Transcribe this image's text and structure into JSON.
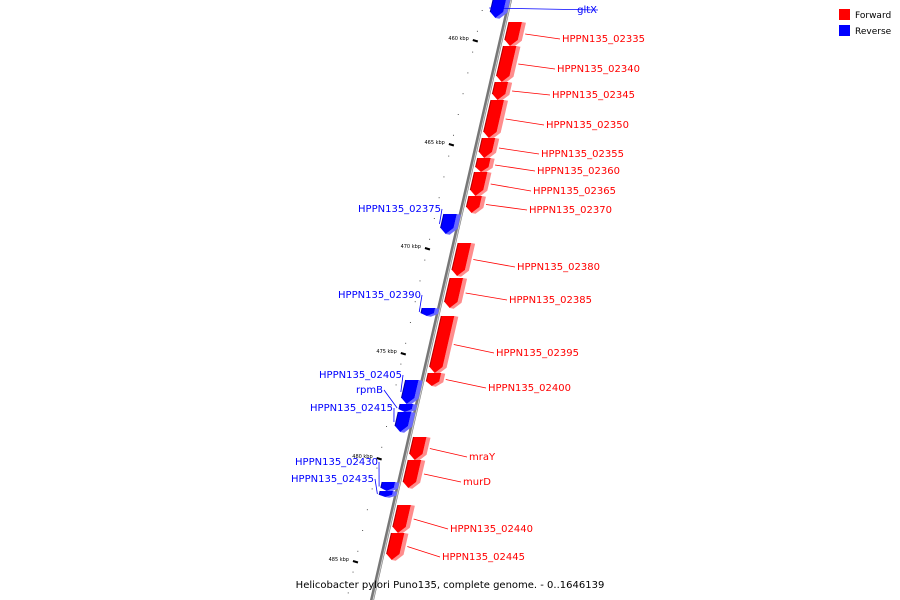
{
  "caption": "Helicobacter pylori Puno135, complete genome. - 0..1646139",
  "colors": {
    "forward": "#ff0000",
    "forward_light": "#ff8c8c",
    "forward_dark": "#b00000",
    "reverse": "#0000ff",
    "reverse_light": "#6a6aff",
    "reverse_dark": "#0000a8"
  },
  "legend": [
    {
      "label": "Forward",
      "color": "#ff0000"
    },
    {
      "label": "Reverse",
      "color": "#0000ff"
    }
  ],
  "ticks": [
    "460 kbp",
    "465 kbp",
    "470 kbp",
    "475 kbp",
    "480 kbp",
    "485 kbp"
  ],
  "genes": [
    {
      "name": "gltX",
      "strand": "reverse"
    },
    {
      "name": "HPPN135_02335",
      "strand": "forward"
    },
    {
      "name": "HPPN135_02340",
      "strand": "forward"
    },
    {
      "name": "HPPN135_02345",
      "strand": "forward"
    },
    {
      "name": "HPPN135_02350",
      "strand": "forward"
    },
    {
      "name": "HPPN135_02355",
      "strand": "forward"
    },
    {
      "name": "HPPN135_02360",
      "strand": "forward"
    },
    {
      "name": "HPPN135_02365",
      "strand": "forward"
    },
    {
      "name": "HPPN135_02370",
      "strand": "forward"
    },
    {
      "name": "HPPN135_02375",
      "strand": "reverse"
    },
    {
      "name": "HPPN135_02380",
      "strand": "forward"
    },
    {
      "name": "HPPN135_02385",
      "strand": "forward"
    },
    {
      "name": "HPPN135_02390",
      "strand": "reverse"
    },
    {
      "name": "HPPN135_02395",
      "strand": "forward"
    },
    {
      "name": "HPPN135_02400",
      "strand": "forward"
    },
    {
      "name": "HPPN135_02405",
      "strand": "reverse"
    },
    {
      "name": "rpmB",
      "strand": "reverse"
    },
    {
      "name": "HPPN135_02415",
      "strand": "reverse"
    },
    {
      "name": "mraY",
      "strand": "forward"
    },
    {
      "name": "murD",
      "strand": "forward"
    },
    {
      "name": "HPPN135_02430",
      "strand": "reverse"
    },
    {
      "name": "HPPN135_02435",
      "strand": "reverse"
    },
    {
      "name": "HPPN135_02440",
      "strand": "forward"
    },
    {
      "name": "HPPN135_02445",
      "strand": "forward"
    }
  ]
}
